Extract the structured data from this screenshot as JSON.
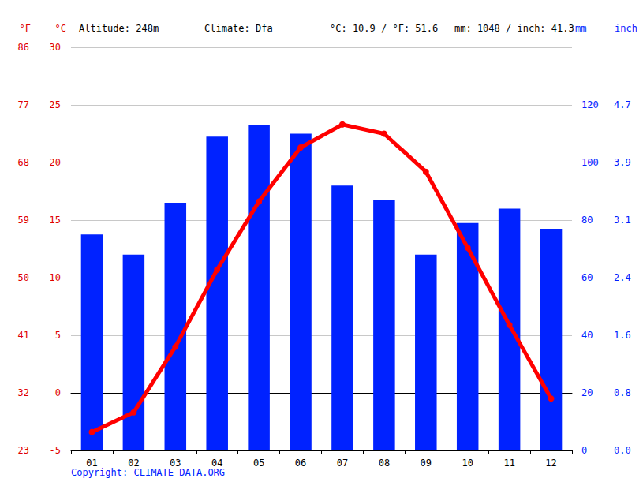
{
  "chart_data": {
    "type": "bar",
    "annotations": [
      "Altitude: 248m",
      "Climate: Dfa",
      "°C: 10.9 / °F: 51.6",
      "mm: 1048 / inch: 41.3"
    ],
    "source": "Copyright: CLIMATE-DATA.ORG",
    "categories": [
      "01",
      "02",
      "03",
      "04",
      "05",
      "06",
      "07",
      "08",
      "09",
      "10",
      "11",
      "12"
    ],
    "series": [
      {
        "type": "bar",
        "axis": "y2",
        "color": "#0022ff",
        "values": [
          75,
          68,
          86,
          109,
          113,
          110,
          92,
          87,
          68,
          79,
          84,
          77
        ]
      },
      {
        "type": "line",
        "axis": "y",
        "color": "#ff0000",
        "marker": "circle",
        "line_style": "solid",
        "values": [
          -3.4,
          -1.7,
          4.0,
          10.7,
          16.6,
          21.3,
          23.3,
          22.5,
          19.2,
          12.6,
          5.9,
          -0.5
        ]
      }
    ],
    "ylabel": "°C",
    "ylim": [
      -5,
      30
    ],
    "yticks": [
      -5,
      0,
      5,
      10,
      15,
      20,
      25,
      30
    ],
    "y2label": "mm",
    "y2lim": [
      0,
      140
    ],
    "y2ticks": [
      0,
      20,
      40,
      60,
      80,
      100,
      120
    ],
    "y3label": "°F",
    "y3lim": [
      23,
      86
    ],
    "y3ticks": [
      23,
      32,
      41,
      50,
      59,
      68,
      77,
      86
    ],
    "y4label": "inch",
    "y4lim": [
      0,
      5.5118
    ],
    "y4ticks": [
      {
        "value": 0,
        "label": "0.0"
      },
      {
        "value": 0.7874,
        "label": "0.8"
      },
      {
        "value": 1.5748,
        "label": "1.6"
      },
      {
        "value": 2.3622,
        "label": "2.4"
      },
      {
        "value": 3.1496,
        "label": "3.1"
      },
      {
        "value": 3.937,
        "label": "3.9"
      },
      {
        "value": 4.7244,
        "label": "4.7"
      }
    ],
    "grid": true
  }
}
